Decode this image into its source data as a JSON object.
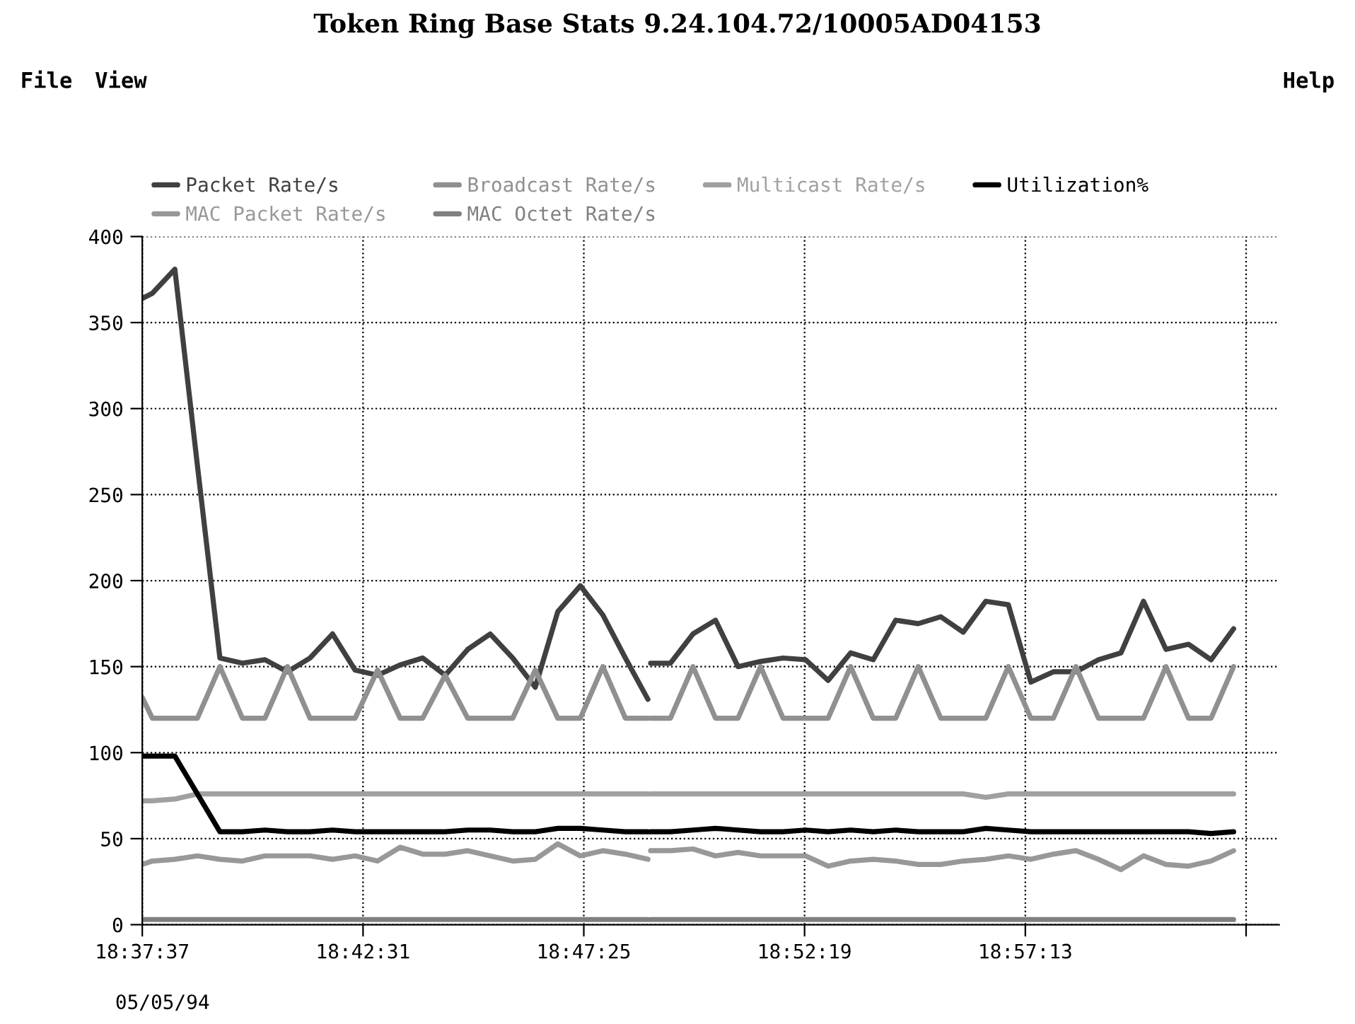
{
  "chart_data": {
    "type": "line",
    "title": "Token Ring Base Stats 9.24.104.72/10005AD04153",
    "annotations": [
      "File",
      "View",
      "Help",
      "05/05/94"
    ],
    "x": [
      18.62694,
      18.63066,
      18.63899,
      18.64733,
      18.65566,
      18.66399,
      18.67233,
      18.68066,
      18.68899,
      18.69733,
      18.70566,
      18.71399,
      18.72233,
      18.73066,
      18.73899,
      18.74733,
      18.75566,
      18.76399,
      18.77233,
      18.78066,
      18.78899,
      18.79733,
      18.80566,
      18.81399,
      18.8145,
      18.815,
      18.82233,
      18.83066,
      18.83899,
      18.84733,
      18.85566,
      18.86399,
      18.87233,
      18.88066,
      18.88899,
      18.89733,
      18.90566,
      18.91399,
      18.92233,
      18.93066,
      18.93899,
      18.94733,
      18.95566,
      18.96399,
      18.97233,
      18.98066,
      18.98899,
      18.99733,
      19.00566,
      19.01399,
      19.02233,
      19.03066
    ],
    "series": [
      {
        "name": "Packet Rate/s",
        "color": "#404040",
        "values": [
          364,
          367,
          381,
          267,
          155,
          152,
          154,
          147,
          155,
          169,
          148,
          145,
          151,
          155,
          145,
          160,
          169,
          155,
          138,
          182,
          197,
          180,
          155,
          131,
          null,
          152,
          152,
          169,
          177,
          150,
          153,
          155,
          154,
          142,
          158,
          154,
          177,
          175,
          179,
          170,
          188,
          186,
          141,
          147,
          147,
          154,
          158,
          188,
          160,
          163,
          154,
          172
        ]
      },
      {
        "name": "Broadcast Rate/s",
        "color": "#909090",
        "values": [
          132,
          120,
          120,
          120,
          150,
          120,
          120,
          150,
          120,
          120,
          120,
          148,
          120,
          120,
          145,
          120,
          120,
          120,
          148,
          120,
          120,
          150,
          120,
          120,
          null,
          120,
          120,
          150,
          120,
          120,
          150,
          120,
          120,
          120,
          150,
          120,
          120,
          150,
          120,
          120,
          120,
          150,
          120,
          120,
          150,
          120,
          120,
          120,
          150,
          120,
          120,
          150
        ]
      },
      {
        "name": "Multicast Rate/s",
        "color": "#a0a0a0",
        "values": [
          72,
          72,
          73,
          76,
          76,
          76,
          76,
          76,
          76,
          76,
          76,
          76,
          76,
          76,
          76,
          76,
          76,
          76,
          76,
          76,
          76,
          76,
          76,
          76,
          null,
          76,
          76,
          76,
          76,
          76,
          76,
          76,
          76,
          76,
          76,
          76,
          76,
          76,
          76,
          76,
          74,
          76,
          76,
          76,
          76,
          76,
          76,
          76,
          76,
          76,
          76,
          76
        ]
      },
      {
        "name": "Utilization%",
        "color": "#000000",
        "values": [
          98,
          98,
          98,
          76,
          54,
          54,
          55,
          54,
          54,
          55,
          54,
          54,
          54,
          54,
          54,
          55,
          55,
          54,
          54,
          56,
          56,
          55,
          54,
          54,
          null,
          54,
          54,
          55,
          56,
          55,
          54,
          54,
          55,
          54,
          55,
          54,
          55,
          54,
          54,
          54,
          56,
          55,
          54,
          54,
          54,
          54,
          54,
          54,
          54,
          54,
          53,
          54
        ]
      },
      {
        "name": "MAC Packet Rate/s",
        "color": "#989898",
        "values": [
          35,
          37,
          38,
          40,
          38,
          37,
          40,
          40,
          40,
          38,
          40,
          37,
          45,
          41,
          41,
          43,
          40,
          37,
          38,
          47,
          40,
          43,
          41,
          38,
          null,
          43,
          43,
          44,
          40,
          42,
          40,
          40,
          40,
          34,
          37,
          38,
          37,
          35,
          35,
          37,
          38,
          40,
          38,
          41,
          43,
          38,
          32,
          40,
          35,
          34,
          37,
          43
        ]
      },
      {
        "name": "MAC Octet Rate/s",
        "color": "#808080",
        "values": [
          3,
          3,
          3,
          3,
          3,
          3,
          3,
          3,
          3,
          3,
          3,
          3,
          3,
          3,
          3,
          3,
          3,
          3,
          3,
          3,
          3,
          3,
          3,
          3,
          null,
          3,
          3,
          3,
          3,
          3,
          3,
          3,
          3,
          3,
          3,
          3,
          3,
          3,
          3,
          3,
          3,
          3,
          3,
          3,
          3,
          3,
          3,
          3,
          3,
          3,
          3,
          3
        ]
      }
    ],
    "xlim": [
      18.62694,
      19.0475
    ],
    "xticks": [
      {
        "value": 18.626944,
        "label": "18:37:37"
      },
      {
        "value": 18.708611,
        "label": "18:42:31"
      },
      {
        "value": 18.790278,
        "label": "18:47:25"
      },
      {
        "value": 18.871944,
        "label": "18:52:19"
      },
      {
        "value": 18.953611,
        "label": "18:57:13"
      },
      {
        "value": 19.035278,
        "label": null
      }
    ],
    "ylim": [
      0,
      400
    ],
    "yticks": [
      0,
      50,
      100,
      150,
      200,
      250,
      300,
      350,
      400
    ],
    "grid": true,
    "legend": "top",
    "marker": "none",
    "line_style": "solid"
  }
}
